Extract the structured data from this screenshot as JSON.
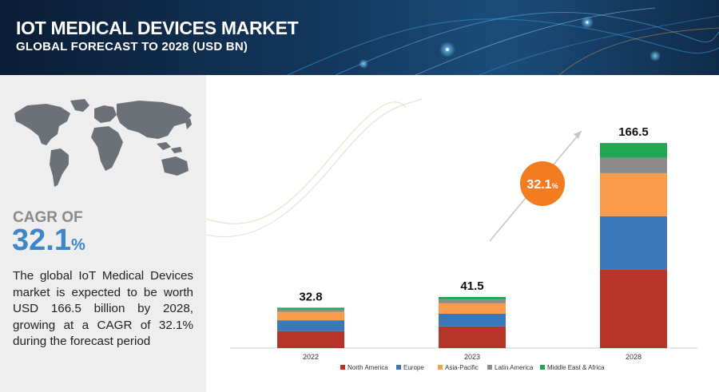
{
  "header": {
    "title": "IOT MEDICAL DEVICES MARKET",
    "subtitle": "GLOBAL FORECAST TO 2028 (USD BN)"
  },
  "left_panel": {
    "cagr_label": "CAGR OF",
    "cagr_number": "32.1",
    "cagr_unit": "%",
    "description": "The global IoT Medical Devices market is expected to be worth USD  166.5 billion by 2028, growing at a CAGR of 32.1% during the forecast period"
  },
  "badge": {
    "number": "32.1",
    "unit": "%"
  },
  "colors": {
    "header_dark": "#0b1d34",
    "panel_bg": "#eeeeee",
    "cagr_blue": "#3f86c8",
    "badge_orange": "#f47c20"
  },
  "chart_data": {
    "type": "bar",
    "stacked": true,
    "categories": [
      "2022",
      "2023",
      "2028"
    ],
    "totals": [
      "32.8",
      "41.5",
      "166.5"
    ],
    "series": [
      {
        "name": "North America",
        "color": "#b5352b",
        "values": [
          13.7,
          17.6,
          64.0
        ]
      },
      {
        "name": "Europe",
        "color": "#3b78b9",
        "values": [
          8.9,
          10.3,
          43.0
        ]
      },
      {
        "name": "Asia-Pacific",
        "color": "#f89c4c",
        "values": [
          6.8,
          8.5,
          35.0
        ]
      },
      {
        "name": "Latin America",
        "color": "#8c8c8c",
        "values": [
          2.0,
          3.0,
          12.5
        ]
      },
      {
        "name": "Middle East & Africa",
        "color": "#21a752",
        "values": [
          1.4,
          2.1,
          12.0
        ]
      }
    ],
    "legend_position": "bottom",
    "grid": false
  }
}
